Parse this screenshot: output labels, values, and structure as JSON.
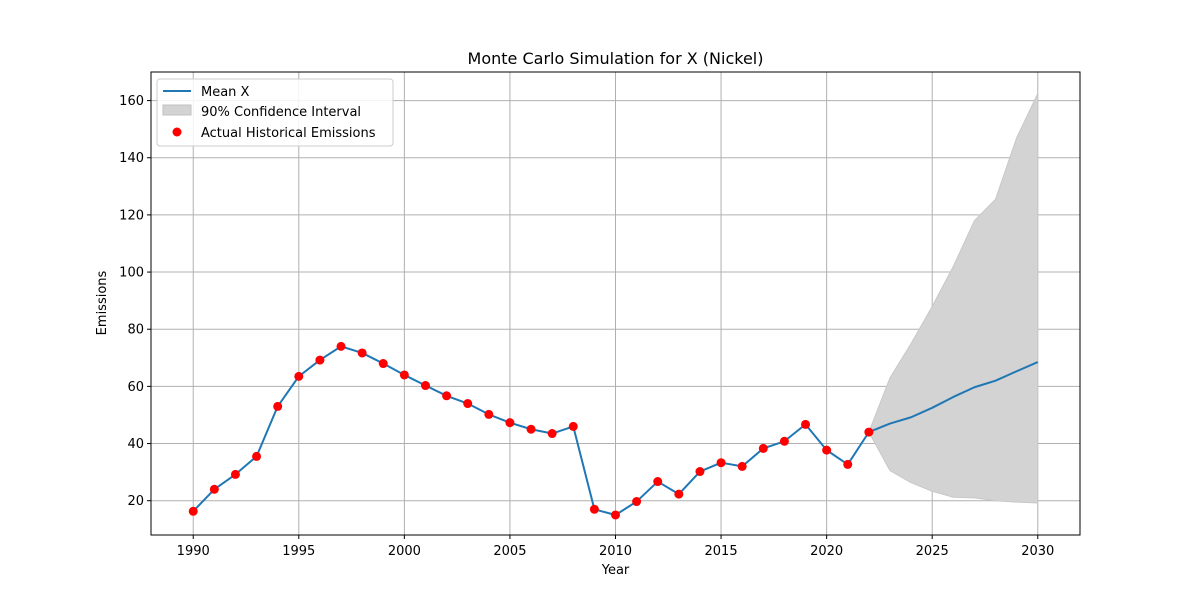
{
  "chart_data": {
    "type": "line",
    "title": "Monte Carlo Simulation for X (Nickel)",
    "xlabel": "Year",
    "ylabel": "Emissions",
    "xlim": [
      1988,
      2032
    ],
    "ylim": [
      8,
      170
    ],
    "xticks": [
      1990,
      1995,
      2000,
      2005,
      2010,
      2015,
      2020,
      2025,
      2030
    ],
    "yticks": [
      20,
      40,
      60,
      80,
      100,
      120,
      140,
      160
    ],
    "grid": true,
    "legend_position": "top-left",
    "colors": {
      "mean_line": "#1f77b4",
      "confidence_fill": "#d3d3d3",
      "historical_points": "#ff0000",
      "grid": "#b0b0b0"
    },
    "legend": [
      {
        "label": "Mean X",
        "kind": "line"
      },
      {
        "label": "90% Confidence Interval",
        "kind": "fill"
      },
      {
        "label": "Actual Historical Emissions",
        "kind": "scatter"
      }
    ],
    "mean": {
      "name": "Mean X",
      "x": [
        1990,
        1991,
        1992,
        1993,
        1994,
        1995,
        1996,
        1997,
        1998,
        1999,
        2000,
        2001,
        2002,
        2003,
        2004,
        2005,
        2006,
        2007,
        2008,
        2009,
        2010,
        2011,
        2012,
        2013,
        2014,
        2015,
        2016,
        2017,
        2018,
        2019,
        2020,
        2021,
        2022,
        2023,
        2024,
        2025,
        2026,
        2027,
        2028,
        2029,
        2030
      ],
      "y": [
        16.3,
        24,
        29.2,
        35.5,
        53,
        63.5,
        69.2,
        74,
        71.7,
        68,
        64,
        60.3,
        56.7,
        54,
        50.2,
        47.3,
        45,
        43.5,
        46,
        17,
        15,
        19.7,
        26.7,
        22.3,
        30.2,
        33.3,
        32,
        38.3,
        40.8,
        46.7,
        37.7,
        32.7,
        44,
        47,
        49.2,
        52.5,
        56.3,
        59.7,
        62,
        65.3,
        68.5
      ]
    },
    "confidence_interval": {
      "name": "90% Confidence Interval",
      "x": [
        2022,
        2023,
        2024,
        2025,
        2026,
        2027,
        2028,
        2029,
        2030
      ],
      "lower": [
        44,
        30.5,
        26.3,
        23.3,
        21.2,
        21,
        20,
        19.5,
        19.2
      ],
      "upper": [
        44,
        63,
        75,
        88,
        102,
        118,
        125.5,
        147,
        162.5
      ]
    },
    "historical": {
      "name": "Actual Historical Emissions",
      "x": [
        1990,
        1991,
        1992,
        1993,
        1994,
        1995,
        1996,
        1997,
        1998,
        1999,
        2000,
        2001,
        2002,
        2003,
        2004,
        2005,
        2006,
        2007,
        2008,
        2009,
        2010,
        2011,
        2012,
        2013,
        2014,
        2015,
        2016,
        2017,
        2018,
        2019,
        2020,
        2021,
        2022
      ],
      "y": [
        16.3,
        24,
        29.2,
        35.5,
        53,
        63.5,
        69.2,
        74,
        71.7,
        68,
        64,
        60.3,
        56.7,
        54,
        50.2,
        47.3,
        45,
        43.5,
        46,
        17,
        15,
        19.7,
        26.7,
        22.3,
        30.2,
        33.3,
        32,
        38.3,
        40.8,
        46.7,
        37.7,
        32.7,
        44
      ]
    }
  }
}
